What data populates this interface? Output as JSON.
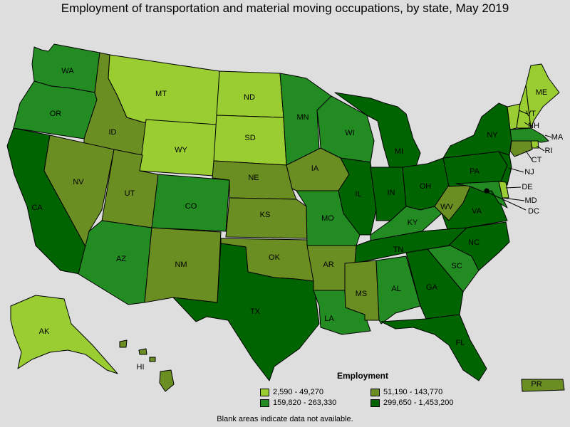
{
  "title": "Employment of transportation and material moving occupations, by state, May 2019",
  "legend": {
    "title": "Employment",
    "items": [
      {
        "label": "2,590 - 49,270",
        "color": "#9acd32"
      },
      {
        "label": "51,190 - 143,770",
        "color": "#6b8e23"
      },
      {
        "label": "159,820 - 263,330",
        "color": "#228b22"
      },
      {
        "label": "299,650 - 1,453,200",
        "color": "#006400"
      }
    ]
  },
  "footnote": "Blank areas indicate data not available.",
  "states": [
    {
      "abbr": "WA",
      "class": 2
    },
    {
      "abbr": "OR",
      "class": 2
    },
    {
      "abbr": "CA",
      "class": 3
    },
    {
      "abbr": "ID",
      "class": 1
    },
    {
      "abbr": "NV",
      "class": 1
    },
    {
      "abbr": "MT",
      "class": 0
    },
    {
      "abbr": "WY",
      "class": 0
    },
    {
      "abbr": "UT",
      "class": 1
    },
    {
      "abbr": "AZ",
      "class": 2
    },
    {
      "abbr": "CO",
      "class": 2
    },
    {
      "abbr": "NM",
      "class": 1
    },
    {
      "abbr": "ND",
      "class": 0
    },
    {
      "abbr": "SD",
      "class": 0
    },
    {
      "abbr": "NE",
      "class": 1
    },
    {
      "abbr": "KS",
      "class": 1
    },
    {
      "abbr": "OK",
      "class": 1
    },
    {
      "abbr": "TX",
      "class": 3
    },
    {
      "abbr": "MN",
      "class": 2
    },
    {
      "abbr": "IA",
      "class": 1
    },
    {
      "abbr": "MO",
      "class": 2
    },
    {
      "abbr": "AR",
      "class": 1
    },
    {
      "abbr": "LA",
      "class": 2
    },
    {
      "abbr": "WI",
      "class": 2
    },
    {
      "abbr": "IL",
      "class": 3
    },
    {
      "abbr": "MI",
      "class": 3
    },
    {
      "abbr": "IN",
      "class": 3
    },
    {
      "abbr": "OH",
      "class": 3
    },
    {
      "abbr": "KY",
      "class": 2
    },
    {
      "abbr": "TN",
      "class": 3
    },
    {
      "abbr": "MS",
      "class": 1
    },
    {
      "abbr": "AL",
      "class": 2
    },
    {
      "abbr": "GA",
      "class": 3
    },
    {
      "abbr": "FL",
      "class": 3
    },
    {
      "abbr": "SC",
      "class": 2
    },
    {
      "abbr": "NC",
      "class": 3
    },
    {
      "abbr": "VA",
      "class": 3
    },
    {
      "abbr": "WV",
      "class": 1
    },
    {
      "abbr": "PA",
      "class": 3
    },
    {
      "abbr": "NY",
      "class": 3
    },
    {
      "abbr": "VT",
      "class": 0
    },
    {
      "abbr": "NH",
      "class": 0
    },
    {
      "abbr": "ME",
      "class": 0
    },
    {
      "abbr": "MA",
      "class": 2
    },
    {
      "abbr": "RI",
      "class": 0
    },
    {
      "abbr": "CT",
      "class": 1
    },
    {
      "abbr": "NJ",
      "class": 3
    },
    {
      "abbr": "DE",
      "class": 0
    },
    {
      "abbr": "MD",
      "class": 2
    },
    {
      "abbr": "DC",
      "class": 0
    },
    {
      "abbr": "AK",
      "class": 0
    },
    {
      "abbr": "HI",
      "class": 1
    },
    {
      "abbr": "PR",
      "class": 1
    }
  ]
}
